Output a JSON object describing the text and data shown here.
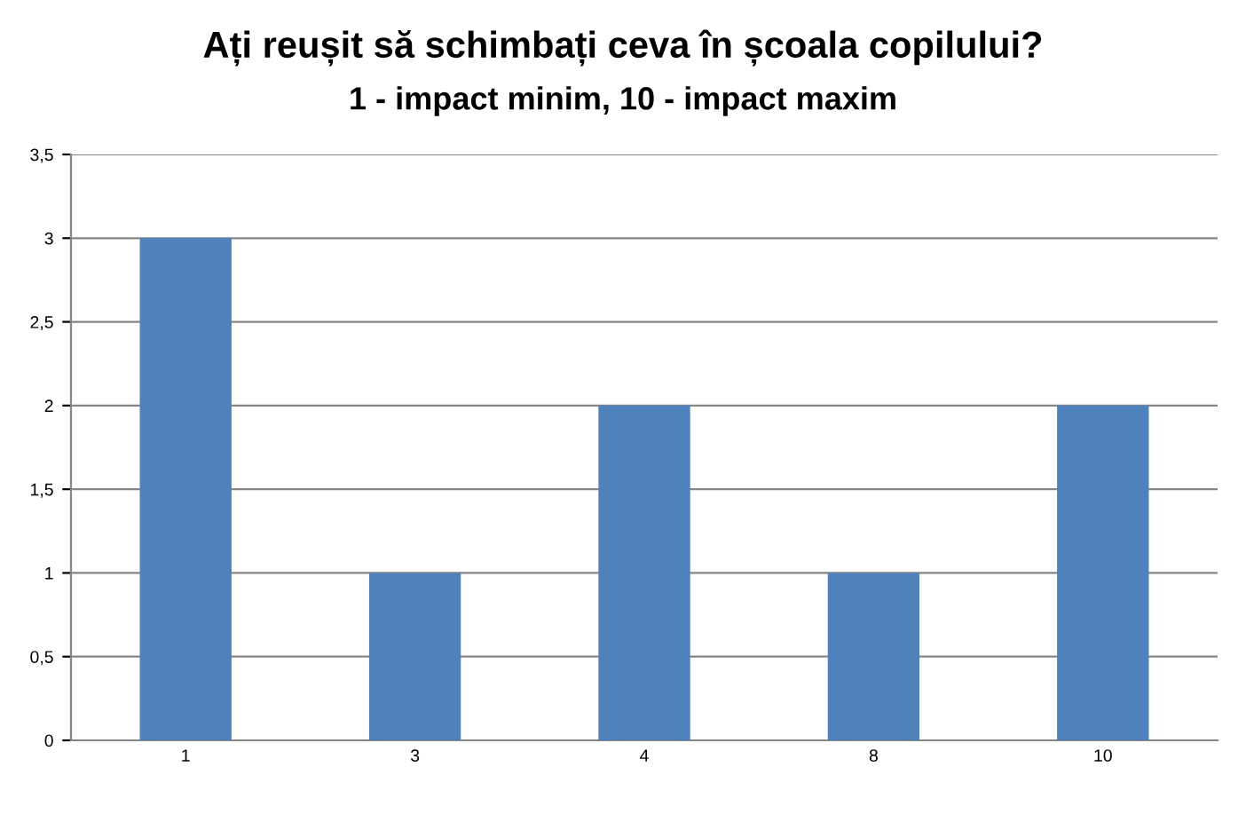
{
  "chart_data": {
    "type": "bar",
    "title": "Ați reușit să schimbați ceva în școala copilului?",
    "subtitle": "1 - impact minim, 10 - impact maxim",
    "categories": [
      "1",
      "3",
      "4",
      "8",
      "10"
    ],
    "values": [
      3,
      1,
      2,
      1,
      2
    ],
    "color": "#4f81bd",
    "ylim": [
      0,
      3.5
    ],
    "yticks": [
      0,
      {
        "value": 0.5,
        "label": "0,5"
      },
      1,
      {
        "value": 1.5,
        "label": "1,5"
      },
      2,
      {
        "value": 2.5,
        "label": "2,5"
      },
      3,
      {
        "value": 3.5,
        "label": "3,5"
      }
    ],
    "grid": "y",
    "legend": false
  }
}
